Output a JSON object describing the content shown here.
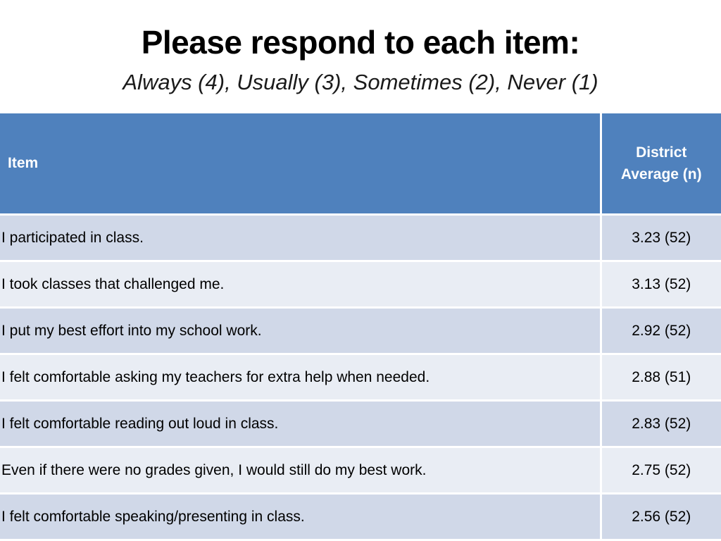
{
  "title": "Please respond to each item:",
  "subtitle": "Always (4), Usually (3), Sometimes (2), Never (1)",
  "table": {
    "headers": {
      "item": "Item",
      "average_line1": "District",
      "average_line2": "Average (n)"
    },
    "rows": [
      {
        "item": "I participated in class.",
        "average": "3.23 (52)"
      },
      {
        "item": "I took classes that challenged me.",
        "average": "3.13 (52)"
      },
      {
        "item": "I put my best effort into my school work.",
        "average": "2.92 (52)"
      },
      {
        "item": "I felt comfortable asking my teachers for extra help when needed.",
        "average": "2.88 (51)"
      },
      {
        "item": "I felt comfortable reading out loud in class.",
        "average": "2.83 (52)"
      },
      {
        "item": "Even if there were no grades given, I would still do my best work.",
        "average": "2.75 (52)"
      },
      {
        "item": "I felt comfortable speaking/presenting in class.",
        "average": "2.56 (52)"
      }
    ]
  },
  "colors": {
    "header_bg": "#4f81bd",
    "row_band_dark": "#d0d8e8",
    "row_band_light": "#e9edf4"
  }
}
